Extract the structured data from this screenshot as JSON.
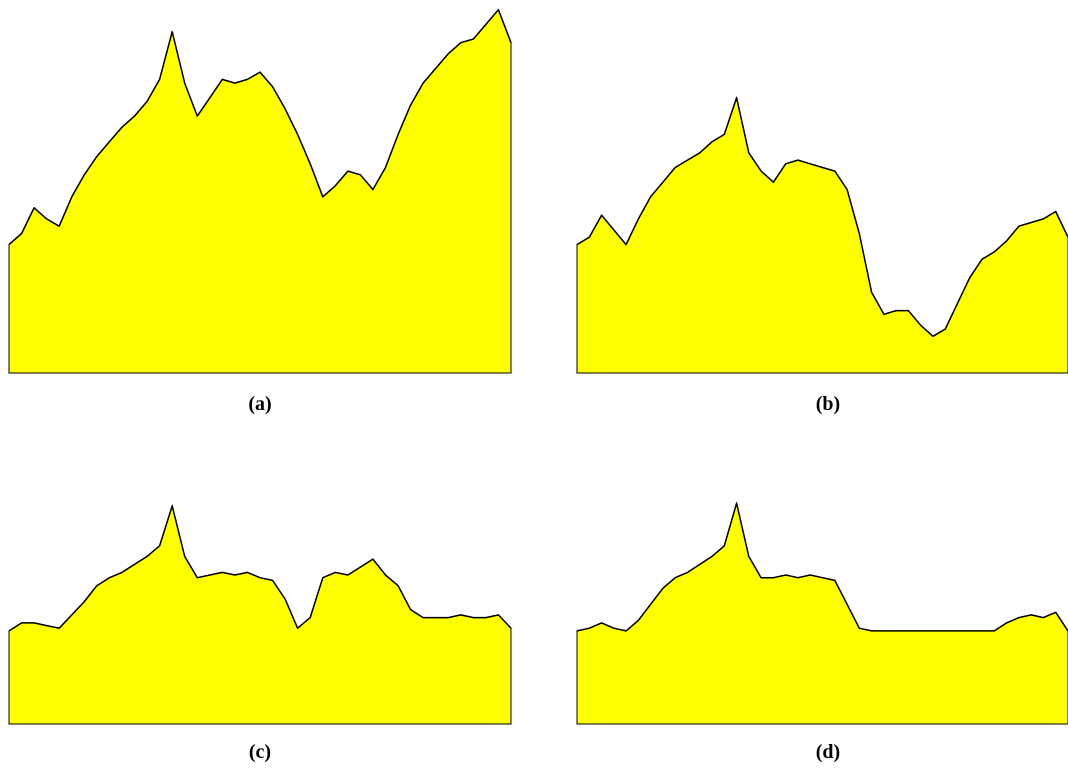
{
  "chart_data": [
    {
      "type": "area",
      "caption": "(a)",
      "fill": "#ffff00",
      "stroke": "#000000",
      "ylim": [
        0,
        1
      ],
      "x": [
        0,
        0.025,
        0.05,
        0.075,
        0.1,
        0.125,
        0.15,
        0.175,
        0.2,
        0.225,
        0.25,
        0.275,
        0.3,
        0.325,
        0.35,
        0.375,
        0.4,
        0.425,
        0.45,
        0.475,
        0.5,
        0.525,
        0.55,
        0.575,
        0.6,
        0.625,
        0.65,
        0.675,
        0.7,
        0.725,
        0.75,
        0.775,
        0.8,
        0.825,
        0.85,
        0.875,
        0.9,
        0.925,
        0.95,
        0.975,
        1
      ],
      "y": [
        0.35,
        0.38,
        0.45,
        0.42,
        0.4,
        0.48,
        0.54,
        0.59,
        0.63,
        0.67,
        0.7,
        0.74,
        0.8,
        0.93,
        0.79,
        0.7,
        0.75,
        0.8,
        0.79,
        0.8,
        0.82,
        0.78,
        0.72,
        0.65,
        0.57,
        0.48,
        0.51,
        0.55,
        0.54,
        0.5,
        0.56,
        0.65,
        0.73,
        0.79,
        0.83,
        0.87,
        0.9,
        0.91,
        0.95,
        0.99,
        0.9
      ]
    },
    {
      "type": "area",
      "caption": "(b)",
      "fill": "#ffff00",
      "stroke": "#000000",
      "ylim": [
        0,
        1
      ],
      "x": [
        0,
        0.025,
        0.05,
        0.075,
        0.1,
        0.125,
        0.15,
        0.175,
        0.2,
        0.225,
        0.25,
        0.275,
        0.3,
        0.325,
        0.35,
        0.375,
        0.4,
        0.425,
        0.45,
        0.475,
        0.5,
        0.525,
        0.55,
        0.575,
        0.6,
        0.625,
        0.65,
        0.675,
        0.7,
        0.725,
        0.75,
        0.775,
        0.8,
        0.825,
        0.85,
        0.875,
        0.9,
        0.925,
        0.95,
        0.975,
        1
      ],
      "y": [
        0.35,
        0.37,
        0.43,
        0.39,
        0.35,
        0.42,
        0.48,
        0.52,
        0.56,
        0.58,
        0.6,
        0.63,
        0.65,
        0.75,
        0.6,
        0.55,
        0.52,
        0.57,
        0.58,
        0.57,
        0.56,
        0.55,
        0.5,
        0.38,
        0.22,
        0.16,
        0.17,
        0.17,
        0.13,
        0.1,
        0.12,
        0.19,
        0.26,
        0.31,
        0.33,
        0.36,
        0.4,
        0.41,
        0.42,
        0.44,
        0.37
      ]
    },
    {
      "type": "area",
      "caption": "(c)",
      "fill": "#ffff00",
      "stroke": "#000000",
      "ylim": [
        0,
        1
      ],
      "x": [
        0,
        0.025,
        0.05,
        0.075,
        0.1,
        0.125,
        0.15,
        0.175,
        0.2,
        0.225,
        0.25,
        0.275,
        0.3,
        0.325,
        0.35,
        0.375,
        0.4,
        0.425,
        0.45,
        0.475,
        0.5,
        0.525,
        0.55,
        0.575,
        0.6,
        0.625,
        0.65,
        0.675,
        0.7,
        0.725,
        0.75,
        0.775,
        0.8,
        0.825,
        0.85,
        0.875,
        0.9,
        0.925,
        0.95,
        0.975,
        1
      ],
      "y": [
        0.35,
        0.38,
        0.38,
        0.37,
        0.36,
        0.41,
        0.46,
        0.52,
        0.55,
        0.57,
        0.6,
        0.63,
        0.67,
        0.82,
        0.63,
        0.55,
        0.56,
        0.57,
        0.56,
        0.57,
        0.55,
        0.54,
        0.47,
        0.36,
        0.4,
        0.55,
        0.57,
        0.56,
        0.59,
        0.62,
        0.56,
        0.52,
        0.43,
        0.4,
        0.4,
        0.4,
        0.41,
        0.4,
        0.4,
        0.41,
        0.36
      ]
    },
    {
      "type": "area",
      "caption": "(d)",
      "fill": "#ffff00",
      "stroke": "#000000",
      "ylim": [
        0,
        1
      ],
      "x": [
        0,
        0.025,
        0.05,
        0.075,
        0.1,
        0.125,
        0.15,
        0.175,
        0.2,
        0.225,
        0.25,
        0.275,
        0.3,
        0.325,
        0.35,
        0.375,
        0.4,
        0.425,
        0.45,
        0.475,
        0.5,
        0.525,
        0.55,
        0.575,
        0.6,
        0.625,
        0.65,
        0.675,
        0.7,
        0.725,
        0.75,
        0.775,
        0.8,
        0.825,
        0.85,
        0.875,
        0.9,
        0.925,
        0.95,
        0.975,
        1
      ],
      "y": [
        0.35,
        0.36,
        0.38,
        0.36,
        0.35,
        0.39,
        0.45,
        0.51,
        0.55,
        0.57,
        0.6,
        0.63,
        0.67,
        0.83,
        0.63,
        0.55,
        0.55,
        0.56,
        0.55,
        0.56,
        0.55,
        0.54,
        0.45,
        0.36,
        0.35,
        0.35,
        0.35,
        0.35,
        0.35,
        0.35,
        0.35,
        0.35,
        0.35,
        0.35,
        0.35,
        0.38,
        0.4,
        0.41,
        0.4,
        0.42,
        0.35
      ]
    }
  ]
}
